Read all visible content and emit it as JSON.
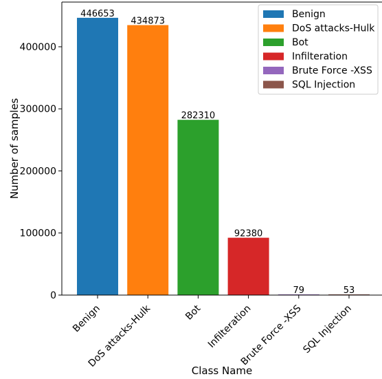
{
  "chart_data": {
    "type": "bar",
    "title": "",
    "xlabel": "Class Name",
    "ylabel": "Number of samples",
    "ylim": [
      0,
      472000
    ],
    "yticks": [
      0,
      100000,
      200000,
      300000,
      400000
    ],
    "yticks_text": [
      "0",
      "100000",
      "200000",
      "300000",
      "400000"
    ],
    "categories": [
      "Benign",
      "DoS attacks-Hulk",
      "Bot",
      "Infilteration",
      "Brute Force -XSS",
      "SQL Injection"
    ],
    "values": [
      446653,
      434873,
      282310,
      92380,
      79,
      53
    ],
    "value_labels": [
      "446653",
      "434873",
      "282310",
      "92380",
      "79",
      "53"
    ],
    "colors": [
      "#1f77b4",
      "#ff7f0e",
      "#2ca02c",
      "#d62728",
      "#9467bd",
      "#8c564b"
    ],
    "legend": {
      "placement": "top-right",
      "entries": [
        "Benign",
        "DoS attacks-Hulk",
        "Bot",
        "Infilteration",
        "Brute Force -XSS",
        "SQL Injection"
      ]
    },
    "grid": false
  }
}
